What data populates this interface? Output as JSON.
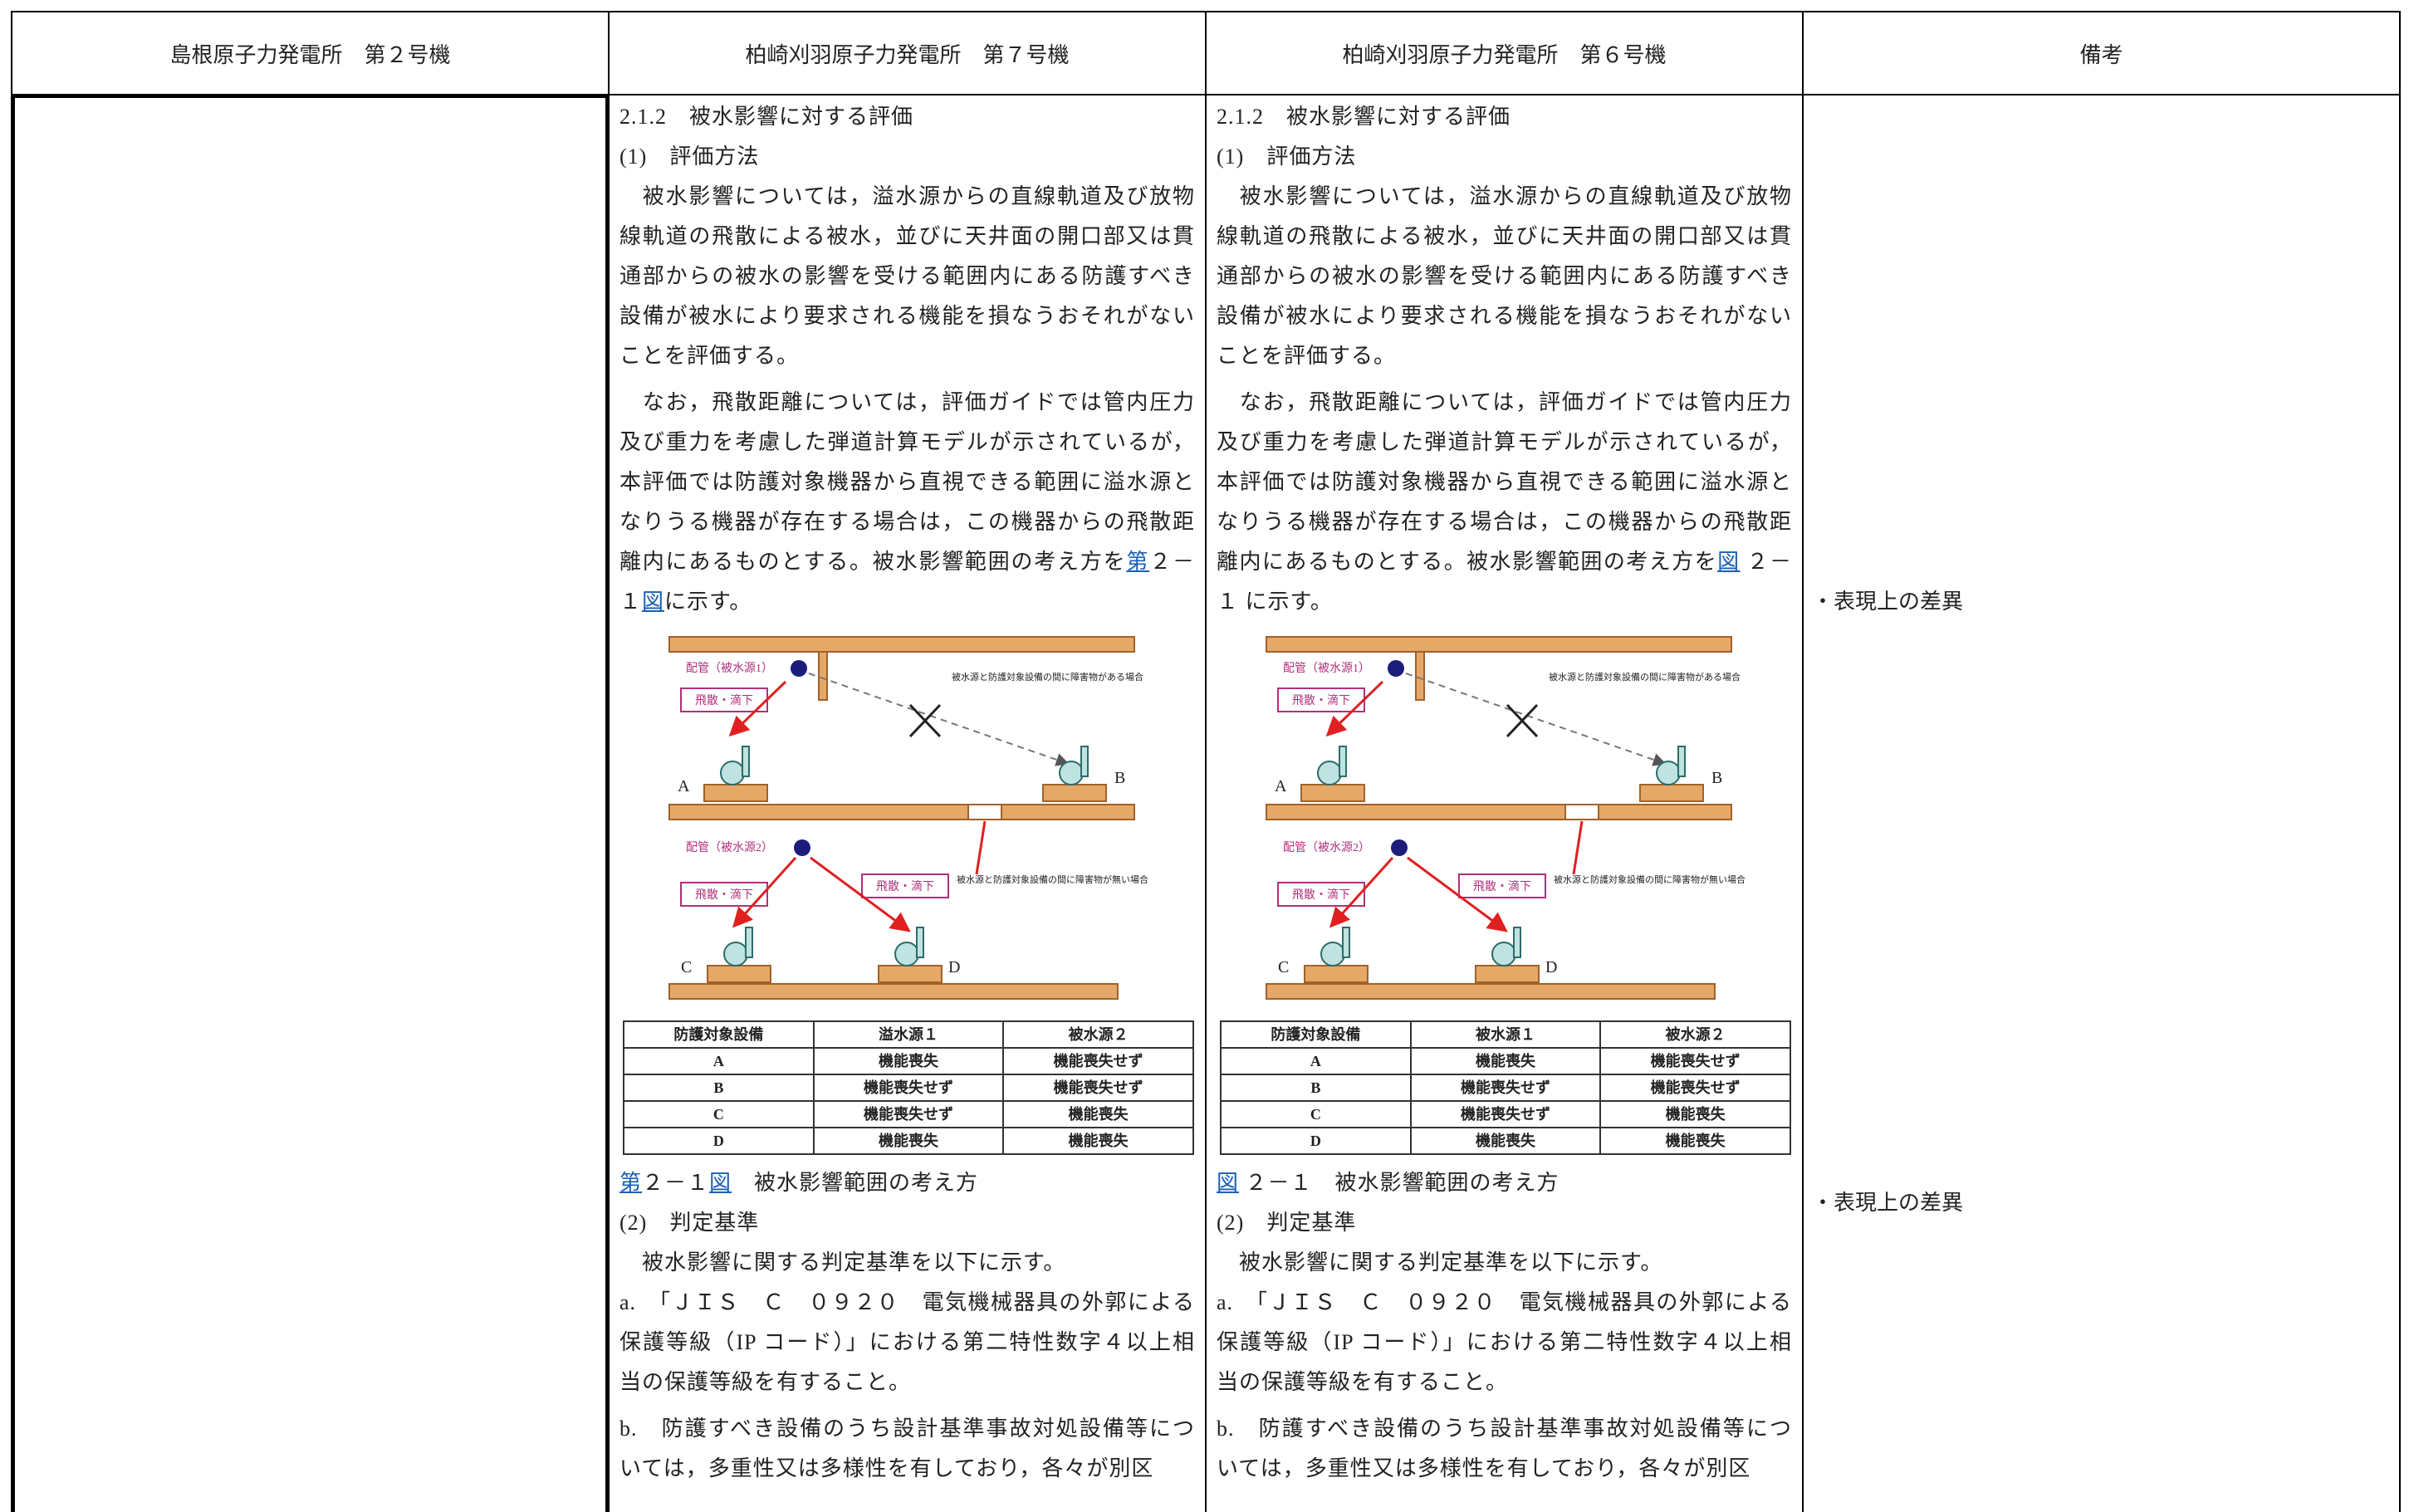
{
  "header": [
    "島根原子力発電所　第２号機",
    "柏崎刈羽原子力発電所　第７号機",
    "柏崎刈羽原子力発電所　第６号機",
    "備考"
  ],
  "kk7": {
    "heading": "2.1.2　被水影響に対する評価",
    "method": "(1)　評価方法",
    "para1": "　被水影響については，溢水源からの直線軌道及び放物線軌道の飛散による被水，並びに天井面の開口部又は貫通部からの被水の影響を受ける範囲内にある防護すべき設備が被水により要求される機能を損なうおそれがないことを評価する。",
    "para2": {
      "before": "　なお，飛散距離については，評価ガイドでは管内圧力及び重力を考慮した弾道計算モデルが示されているが，本評価では防護対象機器から直視できる範囲に溢水源となりうる機器が存在する場合は，この機器からの飛散距離内にあるものとする。被水影響範囲の考え方を",
      "link1": "第",
      "mid": "２－１",
      "link2": "図",
      "after": "に示す。"
    },
    "figure": {
      "src1": "配管（被水源1）",
      "drip1": "飛散・滴下",
      "note1": "被水源と防護対象設備の間に障害物がある場合",
      "a": "A",
      "b": "B",
      "src2": "配管（被水源2）",
      "drip2a": "飛散・滴下",
      "drip2b": "飛散・滴下",
      "note2": "被水源と防護対象設備の間に障害物が無い場合",
      "c": "C",
      "d": "D",
      "table": {
        "header": [
          "防護対象設備",
          "溢水源１",
          "被水源２"
        ],
        "rows": [
          [
            "A",
            "機能喪失",
            "機能喪失せず"
          ],
          [
            "B",
            "機能喪失せず",
            "機能喪失せず"
          ],
          [
            "C",
            "機能喪失せず",
            "機能喪失"
          ],
          [
            "D",
            "機能喪失",
            "機能喪失"
          ]
        ]
      }
    },
    "caption": {
      "link1": "第",
      "mid": "２－１",
      "link2": "図",
      "after": "　被水影響範囲の考え方"
    },
    "criteria": "(2)　判定基準",
    "crit_intro": "　被水影響に関する判定基準を以下に示す。",
    "item_a": "a.　「ＪＩＳ　Ｃ　０９２０　電気機械器具の外郭による保護等級（IP コード）」における第二特性数字４以上相当の保護等級を有すること。",
    "item_b": "b.　防護すべき設備のうち設計基準事故対処設備等については，多重性又は多様性を有しており，各々が別区"
  },
  "kk6": {
    "heading": "2.1.2　被水影響に対する評価",
    "method": "(1)　評価方法",
    "para1": "　被水影響については，溢水源からの直線軌道及び放物線軌道の飛散による被水，並びに天井面の開口部又は貫通部からの被水の影響を受ける範囲内にある防護すべき設備が被水により要求される機能を損なうおそれがないことを評価する。",
    "para2": {
      "before": "　なお，飛散距離については，評価ガイドでは管内圧力及び重力を考慮した弾道計算モデルが示されているが，本評価では防護対象機器から直視できる範囲に溢水源となりうる機器が存在する場合は，この機器からの飛散距離内にあるものとする。被水影響範囲の考え方を",
      "link": "図",
      "after": " ２－１ に示す。"
    },
    "figure": {
      "src1": "配管（被水源1）",
      "drip1": "飛散・滴下",
      "note1": "被水源と防護対象設備の間に障害物がある場合",
      "a": "A",
      "b": "B",
      "src2": "配管（被水源2）",
      "drip2a": "飛散・滴下",
      "drip2b": "飛散・滴下",
      "note2": "被水源と防護対象設備の間に障害物が無い場合",
      "c": "C",
      "d": "D",
      "table": {
        "header": [
          "防護対象設備",
          "被水源１",
          "被水源２"
        ],
        "rows": [
          [
            "A",
            "機能喪失",
            "機能喪失せず"
          ],
          [
            "B",
            "機能喪失せず",
            "機能喪失せず"
          ],
          [
            "C",
            "機能喪失せず",
            "機能喪失"
          ],
          [
            "D",
            "機能喪失",
            "機能喪失"
          ]
        ]
      }
    },
    "caption": {
      "link": "図",
      "after": " ２－１　被水影響範囲の考え方"
    },
    "criteria": "(2)　判定基準",
    "crit_intro": "　被水影響に関する判定基準を以下に示す。",
    "item_a": "a.　「ＪＩＳ　Ｃ　０９２０　電気機械器具の外郭による保護等級（IP コード）」における第二特性数字４以上相当の保護等級を有すること。",
    "item_b": "b.　防護すべき設備のうち設計基準事故対処設備等については，多重性又は多様性を有しており，各々が別区"
  },
  "remarks": [
    "・表現上の差異",
    "・表現上の差異"
  ]
}
